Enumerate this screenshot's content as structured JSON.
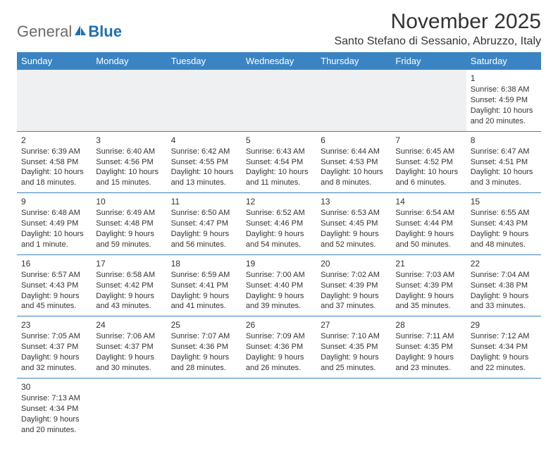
{
  "logo": {
    "text1": "General",
    "text2": "Blue"
  },
  "title": "November 2025",
  "location": "Santo Stefano di Sessanio, Abruzzo, Italy",
  "colors": {
    "header_bg": "#3b84c4",
    "header_text": "#ffffff",
    "border": "#3b84c4",
    "empty_bg": "#eef0f1",
    "logo_gray": "#6b6b6b",
    "logo_blue": "#1f6fb2",
    "text": "#333333",
    "page_bg": "#ffffff"
  },
  "day_headers": [
    "Sunday",
    "Monday",
    "Tuesday",
    "Wednesday",
    "Thursday",
    "Friday",
    "Saturday"
  ],
  "weeks": [
    [
      {
        "empty": true
      },
      {
        "empty": true
      },
      {
        "empty": true
      },
      {
        "empty": true
      },
      {
        "empty": true
      },
      {
        "empty": true
      },
      {
        "day": "1",
        "sunrise": "Sunrise: 6:38 AM",
        "sunset": "Sunset: 4:59 PM",
        "daylight1": "Daylight: 10 hours",
        "daylight2": "and 20 minutes."
      }
    ],
    [
      {
        "day": "2",
        "sunrise": "Sunrise: 6:39 AM",
        "sunset": "Sunset: 4:58 PM",
        "daylight1": "Daylight: 10 hours",
        "daylight2": "and 18 minutes."
      },
      {
        "day": "3",
        "sunrise": "Sunrise: 6:40 AM",
        "sunset": "Sunset: 4:56 PM",
        "daylight1": "Daylight: 10 hours",
        "daylight2": "and 15 minutes."
      },
      {
        "day": "4",
        "sunrise": "Sunrise: 6:42 AM",
        "sunset": "Sunset: 4:55 PM",
        "daylight1": "Daylight: 10 hours",
        "daylight2": "and 13 minutes."
      },
      {
        "day": "5",
        "sunrise": "Sunrise: 6:43 AM",
        "sunset": "Sunset: 4:54 PM",
        "daylight1": "Daylight: 10 hours",
        "daylight2": "and 11 minutes."
      },
      {
        "day": "6",
        "sunrise": "Sunrise: 6:44 AM",
        "sunset": "Sunset: 4:53 PM",
        "daylight1": "Daylight: 10 hours",
        "daylight2": "and 8 minutes."
      },
      {
        "day": "7",
        "sunrise": "Sunrise: 6:45 AM",
        "sunset": "Sunset: 4:52 PM",
        "daylight1": "Daylight: 10 hours",
        "daylight2": "and 6 minutes."
      },
      {
        "day": "8",
        "sunrise": "Sunrise: 6:47 AM",
        "sunset": "Sunset: 4:51 PM",
        "daylight1": "Daylight: 10 hours",
        "daylight2": "and 3 minutes."
      }
    ],
    [
      {
        "day": "9",
        "sunrise": "Sunrise: 6:48 AM",
        "sunset": "Sunset: 4:49 PM",
        "daylight1": "Daylight: 10 hours",
        "daylight2": "and 1 minute."
      },
      {
        "day": "10",
        "sunrise": "Sunrise: 6:49 AM",
        "sunset": "Sunset: 4:48 PM",
        "daylight1": "Daylight: 9 hours",
        "daylight2": "and 59 minutes."
      },
      {
        "day": "11",
        "sunrise": "Sunrise: 6:50 AM",
        "sunset": "Sunset: 4:47 PM",
        "daylight1": "Daylight: 9 hours",
        "daylight2": "and 56 minutes."
      },
      {
        "day": "12",
        "sunrise": "Sunrise: 6:52 AM",
        "sunset": "Sunset: 4:46 PM",
        "daylight1": "Daylight: 9 hours",
        "daylight2": "and 54 minutes."
      },
      {
        "day": "13",
        "sunrise": "Sunrise: 6:53 AM",
        "sunset": "Sunset: 4:45 PM",
        "daylight1": "Daylight: 9 hours",
        "daylight2": "and 52 minutes."
      },
      {
        "day": "14",
        "sunrise": "Sunrise: 6:54 AM",
        "sunset": "Sunset: 4:44 PM",
        "daylight1": "Daylight: 9 hours",
        "daylight2": "and 50 minutes."
      },
      {
        "day": "15",
        "sunrise": "Sunrise: 6:55 AM",
        "sunset": "Sunset: 4:43 PM",
        "daylight1": "Daylight: 9 hours",
        "daylight2": "and 48 minutes."
      }
    ],
    [
      {
        "day": "16",
        "sunrise": "Sunrise: 6:57 AM",
        "sunset": "Sunset: 4:43 PM",
        "daylight1": "Daylight: 9 hours",
        "daylight2": "and 45 minutes."
      },
      {
        "day": "17",
        "sunrise": "Sunrise: 6:58 AM",
        "sunset": "Sunset: 4:42 PM",
        "daylight1": "Daylight: 9 hours",
        "daylight2": "and 43 minutes."
      },
      {
        "day": "18",
        "sunrise": "Sunrise: 6:59 AM",
        "sunset": "Sunset: 4:41 PM",
        "daylight1": "Daylight: 9 hours",
        "daylight2": "and 41 minutes."
      },
      {
        "day": "19",
        "sunrise": "Sunrise: 7:00 AM",
        "sunset": "Sunset: 4:40 PM",
        "daylight1": "Daylight: 9 hours",
        "daylight2": "and 39 minutes."
      },
      {
        "day": "20",
        "sunrise": "Sunrise: 7:02 AM",
        "sunset": "Sunset: 4:39 PM",
        "daylight1": "Daylight: 9 hours",
        "daylight2": "and 37 minutes."
      },
      {
        "day": "21",
        "sunrise": "Sunrise: 7:03 AM",
        "sunset": "Sunset: 4:39 PM",
        "daylight1": "Daylight: 9 hours",
        "daylight2": "and 35 minutes."
      },
      {
        "day": "22",
        "sunrise": "Sunrise: 7:04 AM",
        "sunset": "Sunset: 4:38 PM",
        "daylight1": "Daylight: 9 hours",
        "daylight2": "and 33 minutes."
      }
    ],
    [
      {
        "day": "23",
        "sunrise": "Sunrise: 7:05 AM",
        "sunset": "Sunset: 4:37 PM",
        "daylight1": "Daylight: 9 hours",
        "daylight2": "and 32 minutes."
      },
      {
        "day": "24",
        "sunrise": "Sunrise: 7:06 AM",
        "sunset": "Sunset: 4:37 PM",
        "daylight1": "Daylight: 9 hours",
        "daylight2": "and 30 minutes."
      },
      {
        "day": "25",
        "sunrise": "Sunrise: 7:07 AM",
        "sunset": "Sunset: 4:36 PM",
        "daylight1": "Daylight: 9 hours",
        "daylight2": "and 28 minutes."
      },
      {
        "day": "26",
        "sunrise": "Sunrise: 7:09 AM",
        "sunset": "Sunset: 4:36 PM",
        "daylight1": "Daylight: 9 hours",
        "daylight2": "and 26 minutes."
      },
      {
        "day": "27",
        "sunrise": "Sunrise: 7:10 AM",
        "sunset": "Sunset: 4:35 PM",
        "daylight1": "Daylight: 9 hours",
        "daylight2": "and 25 minutes."
      },
      {
        "day": "28",
        "sunrise": "Sunrise: 7:11 AM",
        "sunset": "Sunset: 4:35 PM",
        "daylight1": "Daylight: 9 hours",
        "daylight2": "and 23 minutes."
      },
      {
        "day": "29",
        "sunrise": "Sunrise: 7:12 AM",
        "sunset": "Sunset: 4:34 PM",
        "daylight1": "Daylight: 9 hours",
        "daylight2": "and 22 minutes."
      }
    ],
    [
      {
        "day": "30",
        "sunrise": "Sunrise: 7:13 AM",
        "sunset": "Sunset: 4:34 PM",
        "daylight1": "Daylight: 9 hours",
        "daylight2": "and 20 minutes."
      },
      {
        "empty": true
      },
      {
        "empty": true
      },
      {
        "empty": true
      },
      {
        "empty": true
      },
      {
        "empty": true
      },
      {
        "empty": true
      }
    ]
  ]
}
